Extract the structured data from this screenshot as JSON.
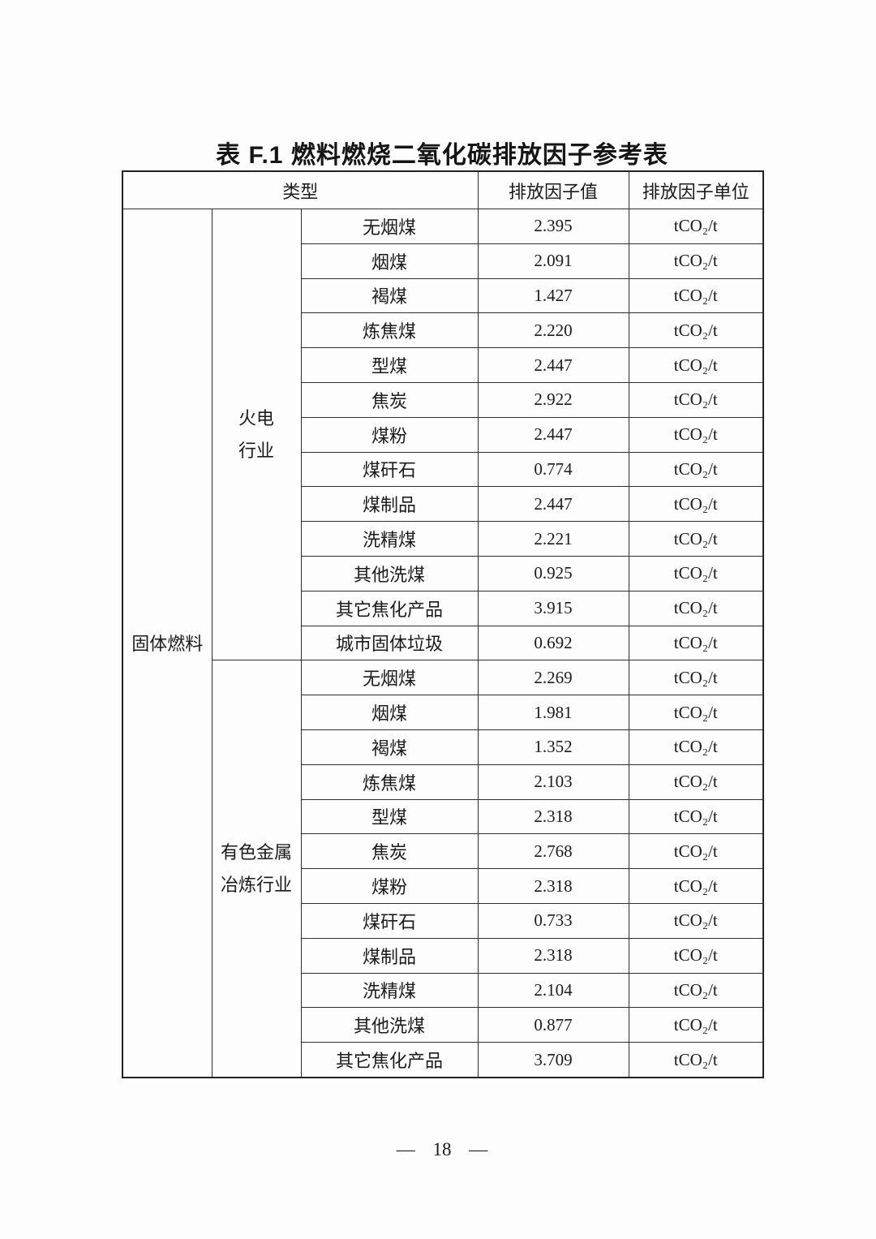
{
  "page": {
    "title": "表 F.1 燃料燃烧二氧化碳排放因子参考表",
    "page_number": "— 18 —"
  },
  "colors": {
    "text": "#1b1b1b",
    "border": "#2e2e2e",
    "background": "#fdfdfd"
  },
  "chart_data": {
    "type": "table",
    "title": "表 F.1 燃料燃烧二氧化碳排放因子参考表",
    "columns": [
      "类型",
      "排放因子值",
      "排放因子单位"
    ],
    "category": "固体燃料",
    "groups": [
      {
        "industry": "火电行业",
        "rows": [
          [
            "无烟煤",
            2.395,
            "tCO₂/t"
          ],
          [
            "烟煤",
            2.091,
            "tCO₂/t"
          ],
          [
            "褐煤",
            1.427,
            "tCO₂/t"
          ],
          [
            "炼焦煤",
            2.22,
            "tCO₂/t"
          ],
          [
            "型煤",
            2.447,
            "tCO₂/t"
          ],
          [
            "焦炭",
            2.922,
            "tCO₂/t"
          ],
          [
            "煤粉",
            2.447,
            "tCO₂/t"
          ],
          [
            "煤矸石",
            0.774,
            "tCO₂/t"
          ],
          [
            "煤制品",
            2.447,
            "tCO₂/t"
          ],
          [
            "洗精煤",
            2.221,
            "tCO₂/t"
          ],
          [
            "其他洗煤",
            0.925,
            "tCO₂/t"
          ],
          [
            "其它焦化产品",
            3.915,
            "tCO₂/t"
          ],
          [
            "城市固体垃圾",
            0.692,
            "tCO₂/t"
          ]
        ]
      },
      {
        "industry": "有色金属冶炼行业",
        "rows": [
          [
            "无烟煤",
            2.269,
            "tCO₂/t"
          ],
          [
            "烟煤",
            1.981,
            "tCO₂/t"
          ],
          [
            "褐煤",
            1.352,
            "tCO₂/t"
          ],
          [
            "炼焦煤",
            2.103,
            "tCO₂/t"
          ],
          [
            "型煤",
            2.318,
            "tCO₂/t"
          ],
          [
            "焦炭",
            2.768,
            "tCO₂/t"
          ],
          [
            "煤粉",
            2.318,
            "tCO₂/t"
          ],
          [
            "煤矸石",
            0.733,
            "tCO₂/t"
          ],
          [
            "煤制品",
            2.318,
            "tCO₂/t"
          ],
          [
            "洗精煤",
            2.104,
            "tCO₂/t"
          ],
          [
            "其他洗煤",
            0.877,
            "tCO₂/t"
          ],
          [
            "其它焦化产品",
            3.709,
            "tCO₂/t"
          ]
        ]
      }
    ]
  },
  "table": {
    "headers": {
      "type": "类型",
      "value": "排放因子值",
      "unit": "排放因子单位"
    },
    "category": "固体燃料",
    "groups": [
      {
        "label_lines": [
          "火电",
          "行业"
        ],
        "rows": [
          {
            "fuel": "无烟煤",
            "value": "2.395",
            "unit": "tCO₂/t"
          },
          {
            "fuel": "烟煤",
            "value": "2.091",
            "unit": "tCO₂/t"
          },
          {
            "fuel": "褐煤",
            "value": "1.427",
            "unit": "tCO₂/t"
          },
          {
            "fuel": "炼焦煤",
            "value": "2.220",
            "unit": "tCO₂/t"
          },
          {
            "fuel": "型煤",
            "value": "2.447",
            "unit": "tCO₂/t"
          },
          {
            "fuel": "焦炭",
            "value": "2.922",
            "unit": "tCO₂/t"
          },
          {
            "fuel": "煤粉",
            "value": "2.447",
            "unit": "tCO₂/t"
          },
          {
            "fuel": "煤矸石",
            "value": "0.774",
            "unit": "tCO₂/t"
          },
          {
            "fuel": "煤制品",
            "value": "2.447",
            "unit": "tCO₂/t"
          },
          {
            "fuel": "洗精煤",
            "value": "2.221",
            "unit": "tCO₂/t"
          },
          {
            "fuel": "其他洗煤",
            "value": "0.925",
            "unit": "tCO₂/t"
          },
          {
            "fuel": "其它焦化产品",
            "value": "3.915",
            "unit": "tCO₂/t"
          },
          {
            "fuel": "城市固体垃圾",
            "value": "0.692",
            "unit": "tCO₂/t"
          }
        ]
      },
      {
        "label_lines": [
          "有色金属",
          "冶炼行业"
        ],
        "rows": [
          {
            "fuel": "无烟煤",
            "value": "2.269",
            "unit": "tCO₂/t"
          },
          {
            "fuel": "烟煤",
            "value": "1.981",
            "unit": "tCO₂/t"
          },
          {
            "fuel": "褐煤",
            "value": "1.352",
            "unit": "tCO₂/t"
          },
          {
            "fuel": "炼焦煤",
            "value": "2.103",
            "unit": "tCO₂/t"
          },
          {
            "fuel": "型煤",
            "value": "2.318",
            "unit": "tCO₂/t"
          },
          {
            "fuel": "焦炭",
            "value": "2.768",
            "unit": "tCO₂/t"
          },
          {
            "fuel": "煤粉",
            "value": "2.318",
            "unit": "tCO₂/t"
          },
          {
            "fuel": "煤矸石",
            "value": "0.733",
            "unit": "tCO₂/t"
          },
          {
            "fuel": "煤制品",
            "value": "2.318",
            "unit": "tCO₂/t"
          },
          {
            "fuel": "洗精煤",
            "value": "2.104",
            "unit": "tCO₂/t"
          },
          {
            "fuel": "其他洗煤",
            "value": "0.877",
            "unit": "tCO₂/t"
          },
          {
            "fuel": "其它焦化产品",
            "value": "3.709",
            "unit": "tCO₂/t"
          }
        ]
      }
    ]
  }
}
